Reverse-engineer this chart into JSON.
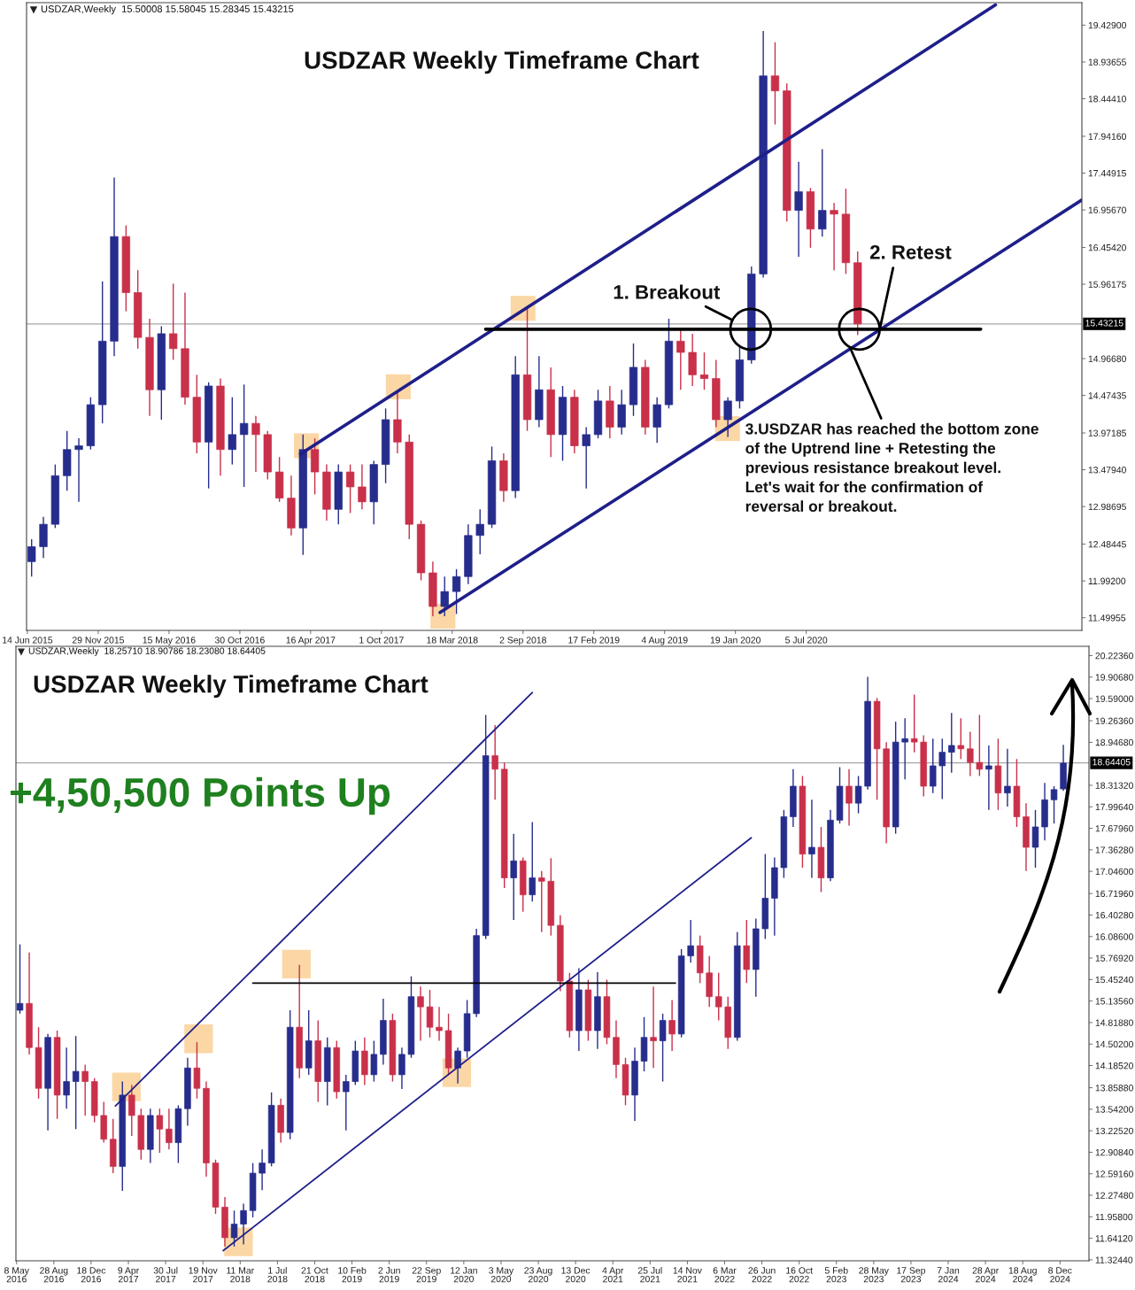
{
  "chart_data": [
    {
      "type": "candlestick",
      "title": "USDZAR Weekly Timeframe Chart",
      "annotations": [
        "USDZAR,Weekly  15.50008 15.58045 15.28345 15.43215",
        {
          "text": "1. Breakout",
          "x": "2020-02-24",
          "y": 15.36
        },
        {
          "text": "2. Retest",
          "x": "2020-12-26",
          "y": 15.35
        },
        {
          "text": "3.USDZAR has reached the bottom zone\nof the Uptrend line + Retesting the\nprevious resistance breakout level.\nLet's wait for the confirmation of\nreversal or breakout.",
          "x": "2020-10-18",
          "y": 15.1
        }
      ],
      "xlim": [
        "2015-06-12",
        "2022-04-20"
      ],
      "xticks": [
        {
          "value": "2015-06-14",
          "label": "14 Jun 2015"
        },
        {
          "value": "2015-11-29",
          "label": "29 Nov 2015"
        },
        {
          "value": "2016-05-15",
          "label": "15 May 2016"
        },
        {
          "value": "2016-10-30",
          "label": "30 Oct 2016"
        },
        {
          "value": "2017-04-16",
          "label": "16 Apr 2017"
        },
        {
          "value": "2017-10-01",
          "label": "1 Oct 2017"
        },
        {
          "value": "2018-03-18",
          "label": "18 Mar 2018"
        },
        {
          "value": "2018-09-02",
          "label": "2 Sep 2018"
        },
        {
          "value": "2019-02-17",
          "label": "17 Feb 2019"
        },
        {
          "value": "2019-08-04",
          "label": "4 Aug 2019"
        },
        {
          "value": "2020-01-19",
          "label": "19 Jan 2020"
        },
        {
          "value": "2020-07-05",
          "label": "5 Jul 2020"
        }
      ],
      "ylim": [
        11.33,
        19.73
      ],
      "yticks": [
        {
          "value": 19.429,
          "label": "19.42900"
        },
        18.93655,
        {
          "value": 18.4441,
          "label": "18.44410"
        },
        {
          "value": 17.9416,
          "label": "17.94160"
        },
        17.44915,
        {
          "value": 16.9567,
          "label": "16.95670"
        },
        {
          "value": 16.4542,
          "label": "16.45420"
        },
        15.96175,
        {
          "value": 14.9668,
          "label": "14.96680"
        },
        14.47435,
        13.97185,
        {
          "value": 13.4794,
          "label": "13.47940"
        },
        12.98695,
        12.48445,
        {
          "value": 11.992,
          "label": "11.99200"
        },
        11.49955
      ],
      "ref_lines": [
        {
          "axis": "y",
          "value": 15.43215,
          "label": "15.43215",
          "color": "#a6a6a6"
        }
      ],
      "series": [
        {
          "color": "#262d8c",
          "x": [
            "2015-06-24",
            "2015-07-22",
            "2015-08-19",
            "2015-09-16",
            "2015-10-14",
            "2015-11-11",
            "2015-12-09",
            "2016-01-06",
            "2016-04-27",
            "2016-08-17",
            "2016-10-12",
            "2016-11-09",
            "2017-03-29",
            "2017-06-21",
            "2017-09-13",
            "2017-10-11",
            "2018-02-28",
            "2018-03-28",
            "2018-04-25",
            "2018-05-23",
            "2018-06-20",
            "2018-08-15",
            "2018-10-10",
            "2018-12-05",
            "2019-01-30",
            "2019-02-27",
            "2019-04-24",
            "2019-05-22",
            "2019-07-17",
            "2019-08-14",
            "2020-01-01",
            "2020-01-29",
            "2020-02-26",
            "2020-03-25",
            "2020-06-17",
            "2020-08-12"
          ],
          "ohlc": [
            [
              12.25,
              12.55,
              12.05,
              12.45
            ],
            [
              12.45,
              12.85,
              12.3,
              12.75
            ],
            [
              12.75,
              13.55,
              12.7,
              13.4
            ],
            [
              13.4,
              14.0,
              13.2,
              13.75
            ],
            [
              13.75,
              13.9,
              13.05,
              13.8
            ],
            [
              13.8,
              14.45,
              13.75,
              14.35
            ],
            [
              14.35,
              16.0,
              14.1,
              15.2
            ],
            [
              15.2,
              17.39,
              15.0,
              16.6
            ],
            [
              14.55,
              15.4,
              14.15,
              15.3
            ],
            [
              13.85,
              14.65,
              13.23,
              14.6
            ],
            [
              13.75,
              14.45,
              13.55,
              13.95
            ],
            [
              13.95,
              14.62,
              13.25,
              14.1
            ],
            [
              12.7,
              13.95,
              12.34,
              13.75
            ],
            [
              12.95,
              13.55,
              12.75,
              13.45
            ],
            [
              13.05,
              13.6,
              12.75,
              13.55
            ],
            [
              13.55,
              14.3,
              13.3,
              14.15
            ],
            [
              11.65,
              12.05,
              11.52,
              11.85
            ],
            [
              11.85,
              12.15,
              11.55,
              12.05
            ],
            [
              12.05,
              12.75,
              11.95,
              12.6
            ],
            [
              12.6,
              12.95,
              12.35,
              12.75
            ],
            [
              12.75,
              13.79,
              12.7,
              13.6
            ],
            [
              13.2,
              15.0,
              13.1,
              14.75
            ],
            [
              14.15,
              15.0,
              14.05,
              14.55
            ],
            [
              13.95,
              14.6,
              13.6,
              14.45
            ],
            [
              13.8,
              14.05,
              13.23,
              13.95
            ],
            [
              13.95,
              14.55,
              13.9,
              14.4
            ],
            [
              14.05,
              14.55,
              13.95,
              14.35
            ],
            [
              14.35,
              15.17,
              14.2,
              14.85
            ],
            [
              14.05,
              14.45,
              13.84,
              14.35
            ],
            [
              14.35,
              15.5,
              14.3,
              15.2
            ],
            [
              14.15,
              14.45,
              13.92,
              14.4
            ],
            [
              14.4,
              15.15,
              14.3,
              14.95
            ],
            [
              14.95,
              16.2,
              14.9,
              16.1
            ],
            [
              16.1,
              19.35,
              16.05,
              18.75
            ],
            [
              16.95,
              17.6,
              16.33,
              17.2
            ],
            [
              16.7,
              17.77,
              16.6,
              16.95
            ]
          ]
        },
        {
          "color": "#c9304a",
          "x": [
            "2016-02-03",
            "2016-03-02",
            "2016-03-30",
            "2016-05-25",
            "2016-06-22",
            "2016-07-20",
            "2016-09-14",
            "2016-12-07",
            "2017-01-04",
            "2017-02-01",
            "2017-03-01",
            "2017-04-26",
            "2017-05-24",
            "2017-07-19",
            "2017-08-16",
            "2017-11-08",
            "2017-12-06",
            "2018-01-03",
            "2018-01-31",
            "2018-07-18",
            "2018-09-12",
            "2018-11-07",
            "2019-01-02",
            "2019-03-27",
            "2019-06-19",
            "2019-09-11",
            "2019-10-09",
            "2019-11-06",
            "2019-12-04",
            "2020-04-22",
            "2020-05-20",
            "2020-07-15",
            "2020-09-09",
            "2020-10-07",
            "2020-11-04"
          ],
          "ohlc": [
            [
              16.6,
              16.75,
              15.6,
              15.85
            ],
            [
              15.85,
              16.15,
              15.1,
              15.25
            ],
            [
              15.25,
              15.5,
              14.2,
              14.55
            ],
            [
              15.3,
              15.97,
              14.95,
              15.1
            ],
            [
              15.1,
              15.85,
              14.35,
              14.45
            ],
            [
              14.45,
              14.75,
              13.7,
              13.85
            ],
            [
              14.6,
              14.7,
              13.4,
              13.75
            ],
            [
              14.1,
              14.2,
              13.45,
              13.95
            ],
            [
              13.95,
              14.0,
              13.35,
              13.45
            ],
            [
              13.45,
              13.65,
              13.05,
              13.1
            ],
            [
              13.1,
              13.4,
              12.6,
              12.7
            ],
            [
              13.75,
              13.9,
              13.15,
              13.45
            ],
            [
              13.45,
              13.55,
              12.8,
              12.95
            ],
            [
              13.45,
              13.55,
              12.9,
              13.25
            ],
            [
              13.25,
              13.55,
              12.95,
              13.05
            ],
            [
              14.15,
              14.53,
              13.7,
              13.85
            ],
            [
              13.85,
              13.95,
              12.55,
              12.75
            ],
            [
              12.75,
              12.8,
              12.0,
              12.1
            ],
            [
              12.1,
              12.25,
              11.52,
              11.65
            ],
            [
              13.6,
              13.7,
              13.05,
              13.2
            ],
            [
              14.75,
              15.67,
              14.0,
              14.15
            ],
            [
              14.55,
              14.85,
              13.65,
              13.95
            ],
            [
              14.45,
              14.55,
              13.7,
              13.8
            ],
            [
              14.4,
              14.6,
              13.9,
              14.05
            ],
            [
              14.85,
              14.95,
              13.95,
              14.05
            ],
            [
              15.2,
              15.35,
              14.55,
              15.05
            ],
            [
              15.05,
              15.3,
              14.6,
              14.75
            ],
            [
              14.75,
              15.05,
              14.55,
              14.7
            ],
            [
              14.7,
              14.95,
              14.05,
              14.15
            ],
            [
              18.75,
              19.2,
              18.1,
              18.55
            ],
            [
              18.55,
              18.65,
              16.8,
              16.95
            ],
            [
              17.2,
              17.25,
              16.45,
              16.7
            ],
            [
              16.95,
              17.05,
              16.15,
              16.9
            ],
            [
              16.9,
              17.24,
              16.1,
              16.25
            ],
            [
              16.25,
              16.4,
              15.28,
              15.43
            ]
          ]
        },
        {
          "type": "line",
          "color": "#1f1f8a",
          "x": [
            "2017-03-23",
            "2021-09-27"
          ],
          "values": [
            13.69,
            19.7
          ]
        },
        {
          "type": "line",
          "color": "#1f1f8a",
          "x": [
            "2018-02-17",
            "2022-04-20"
          ],
          "values": [
            11.57,
            17.09
          ]
        },
        {
          "type": "line",
          "color": "#000000",
          "x": [
            "2018-06-05",
            "2021-08-23"
          ],
          "values": [
            15.36,
            15.36
          ]
        },
        {
          "type": "scatter",
          "marker": "square",
          "color": "#fbd7a5",
          "x": [
            "2017-04-06",
            "2017-11-10",
            "2018-02-24",
            "2018-09-02",
            "2019-12-31"
          ],
          "values": [
            13.8,
            14.59,
            11.52,
            15.64,
            14.03
          ]
        },
        {
          "type": "scatter",
          "marker": "circle",
          "color": "#000000",
          "x": [
            "2020-02-24",
            "2020-11-08"
          ],
          "values": [
            15.36,
            15.36
          ]
        }
      ]
    },
    {
      "type": "candlestick",
      "title": "USDZAR Weekly Timeframe Chart",
      "annotations": [
        "USDZAR,Weekly  18.25710 18.90786 18.23080 18.64405",
        "+4,50,500 Points Up"
      ],
      "xlim": [
        "2016-05-06",
        "2025-03-05"
      ],
      "xticks": [
        {
          "value": "2016-05-08",
          "label": "8 May 2016"
        },
        {
          "value": "2016-08-28",
          "label": "28 Aug 2016"
        },
        {
          "value": "2016-12-18",
          "label": "18 Dec 2016"
        },
        {
          "value": "2017-04-09",
          "label": "9 Apr 2017"
        },
        {
          "value": "2017-07-30",
          "label": "30 Jul 2017"
        },
        {
          "value": "2017-11-19",
          "label": "19 Nov 2017"
        },
        {
          "value": "2018-03-11",
          "label": "11 Mar 2018"
        },
        {
          "value": "2018-07-01",
          "label": "1 Jul 2018"
        },
        {
          "value": "2018-10-21",
          "label": "21 Oct 2018"
        },
        {
          "value": "2019-02-10",
          "label": "10 Feb 2019"
        },
        {
          "value": "2019-06-02",
          "label": "2 Jun 2019"
        },
        {
          "value": "2019-09-22",
          "label": "22 Sep 2019"
        },
        {
          "value": "2020-01-12",
          "label": "12 Jan 2020"
        },
        {
          "value": "2020-05-03",
          "label": "3 May 2020"
        },
        {
          "value": "2020-08-23",
          "label": "23 Aug 2020"
        },
        {
          "value": "2020-12-13",
          "label": "13 Dec 2020"
        },
        {
          "value": "2021-04-04",
          "label": "4 Apr 2021"
        },
        {
          "value": "2021-07-25",
          "label": "25 Jul 2021"
        },
        {
          "value": "2021-11-14",
          "label": "14 Nov 2021"
        },
        {
          "value": "2022-03-06",
          "label": "6 Mar 2022"
        },
        {
          "value": "2022-06-26",
          "label": "26 Jun 2022"
        },
        {
          "value": "2022-10-16",
          "label": "16 Oct 2022"
        },
        {
          "value": "2023-02-05",
          "label": "5 Feb 2023"
        },
        {
          "value": "2023-05-28",
          "label": "28 May 2023"
        },
        {
          "value": "2023-09-17",
          "label": "17 Sep 2023"
        },
        {
          "value": "2024-01-07",
          "label": "7 Jan 2024"
        },
        {
          "value": "2024-04-28",
          "label": "28 Apr 2024"
        },
        {
          "value": "2024-08-18",
          "label": "18 Aug 2024"
        },
        {
          "value": "2024-12-08",
          "label": "8 Dec 2024"
        }
      ],
      "ylim": [
        11.31,
        20.36
      ],
      "yticks": [
        {
          "value": 20.2236,
          "label": "20.22360"
        },
        {
          "value": 19.9068,
          "label": "19.90680"
        },
        {
          "value": 19.59,
          "label": "19.59000"
        },
        {
          "value": 19.2636,
          "label": "19.26360"
        },
        {
          "value": 18.9468,
          "label": "18.94680"
        },
        {
          "value": 18.3132,
          "label": "18.31320"
        },
        {
          "value": 17.9964,
          "label": "17.99640"
        },
        {
          "value": 17.6796,
          "label": "17.67960"
        },
        {
          "value": 17.3628,
          "label": "17.36280"
        },
        {
          "value": 17.046,
          "label": "17.04600"
        },
        {
          "value": 16.7196,
          "label": "16.71960"
        },
        {
          "value": 16.4028,
          "label": "16.40280"
        },
        {
          "value": 16.086,
          "label": "16.08600"
        },
        {
          "value": 15.7692,
          "label": "15.76920"
        },
        {
          "value": 15.4524,
          "label": "15.45240"
        },
        {
          "value": 15.1356,
          "label": "15.13560"
        },
        {
          "value": 14.8188,
          "label": "14.81880"
        },
        {
          "value": 14.502,
          "label": "14.50200"
        },
        {
          "value": 14.1852,
          "label": "14.18520"
        },
        {
          "value": 13.8588,
          "label": "13.85880"
        },
        {
          "value": 13.542,
          "label": "13.54200"
        },
        {
          "value": 13.2252,
          "label": "13.22520"
        },
        {
          "value": 12.9084,
          "label": "12.90840"
        },
        {
          "value": 12.5916,
          "label": "12.59160"
        },
        {
          "value": 12.2748,
          "label": "12.27480"
        },
        {
          "value": 11.958,
          "label": "11.95800"
        },
        {
          "value": 11.6412,
          "label": "11.64120"
        },
        {
          "value": 11.3244,
          "label": "11.32440"
        }
      ],
      "ref_lines": [
        {
          "axis": "y",
          "value": 18.64405,
          "label": "18.64405",
          "color": "#a6a6a6"
        }
      ],
      "series": [
        {
          "color": "#262d8c",
          "x": [
            "2016-05-18",
            "2016-08-10",
            "2016-10-05",
            "2016-11-02",
            "2017-03-22",
            "2017-06-14",
            "2017-09-06",
            "2017-10-04",
            "2018-02-21",
            "2018-03-21",
            "2018-04-18",
            "2018-05-16",
            "2018-06-13",
            "2018-08-08",
            "2018-10-03",
            "2018-11-28",
            "2019-01-23",
            "2019-02-20",
            "2019-04-17",
            "2019-05-15",
            "2019-07-10",
            "2019-08-07",
            "2019-12-25",
            "2020-01-22",
            "2020-02-19",
            "2020-03-18",
            "2020-06-10",
            "2020-08-05",
            "2020-12-23",
            "2021-02-17",
            "2021-06-09",
            "2021-07-07",
            "2021-09-01",
            "2021-10-27",
            "2021-11-24",
            "2022-04-13",
            "2022-06-08",
            "2022-07-06",
            "2022-08-03",
            "2022-08-31",
            "2022-09-28",
            "2022-11-23",
            "2023-01-18",
            "2023-02-15",
            "2023-04-12",
            "2023-05-10",
            "2023-08-02",
            "2023-08-30",
            "2023-11-22",
            "2023-12-20",
            "2024-01-17",
            "2024-05-08",
            "2024-07-03",
            "2024-09-25",
            "2024-10-23",
            "2024-11-20",
            "2024-12-18"
          ],
          "ohlc": [
            [
              15.0,
              15.97,
              14.95,
              15.1
            ],
            [
              13.85,
              14.65,
              13.23,
              14.6
            ],
            [
              13.75,
              14.45,
              13.55,
              13.95
            ],
            [
              13.95,
              14.62,
              13.25,
              14.1
            ],
            [
              12.7,
              13.95,
              12.34,
              13.75
            ],
            [
              12.95,
              13.55,
              12.75,
              13.45
            ],
            [
              13.05,
              13.6,
              12.75,
              13.55
            ],
            [
              13.55,
              14.3,
              13.3,
              14.15
            ],
            [
              11.65,
              12.05,
              11.52,
              11.85
            ],
            [
              11.85,
              12.15,
              11.55,
              12.05
            ],
            [
              12.05,
              12.75,
              11.95,
              12.6
            ],
            [
              12.6,
              12.95,
              12.35,
              12.75
            ],
            [
              12.75,
              13.79,
              12.7,
              13.6
            ],
            [
              13.2,
              15.0,
              13.1,
              14.75
            ],
            [
              14.15,
              15.0,
              14.05,
              14.55
            ],
            [
              13.95,
              14.6,
              13.6,
              14.45
            ],
            [
              13.8,
              14.05,
              13.23,
              13.95
            ],
            [
              13.95,
              14.55,
              13.9,
              14.4
            ],
            [
              14.05,
              14.55,
              13.95,
              14.35
            ],
            [
              14.35,
              15.17,
              14.2,
              14.85
            ],
            [
              14.05,
              14.45,
              13.84,
              14.35
            ],
            [
              14.35,
              15.5,
              14.3,
              15.2
            ],
            [
              14.15,
              14.45,
              13.92,
              14.4
            ],
            [
              14.4,
              15.15,
              14.3,
              14.95
            ],
            [
              14.95,
              16.2,
              14.9,
              16.1
            ],
            [
              16.1,
              19.35,
              16.05,
              18.75
            ],
            [
              16.95,
              17.6,
              16.33,
              17.2
            ],
            [
              16.7,
              17.77,
              16.6,
              16.95
            ],
            [
              14.7,
              15.62,
              14.4,
              15.3
            ],
            [
              14.7,
              15.56,
              14.43,
              15.2
            ],
            [
              13.75,
              14.45,
              13.37,
              14.25
            ],
            [
              14.25,
              14.9,
              14.1,
              14.6
            ],
            [
              14.55,
              14.95,
              13.95,
              14.85
            ],
            [
              14.65,
              15.9,
              14.6,
              15.8
            ],
            [
              15.8,
              16.33,
              15.7,
              15.95
            ],
            [
              14.6,
              16.15,
              14.55,
              15.95
            ],
            [
              15.6,
              16.35,
              15.2,
              16.2
            ],
            [
              16.2,
              17.3,
              16.05,
              16.65
            ],
            [
              16.65,
              17.25,
              16.1,
              17.1
            ],
            [
              17.1,
              17.95,
              16.95,
              17.85
            ],
            [
              17.85,
              18.55,
              17.7,
              18.3
            ],
            [
              17.3,
              18.1,
              16.95,
              17.4
            ],
            [
              16.95,
              17.95,
              16.9,
              17.8
            ],
            [
              17.8,
              18.58,
              17.75,
              18.3
            ],
            [
              18.05,
              18.45,
              17.9,
              18.3
            ],
            [
              18.3,
              19.91,
              18.25,
              19.55
            ],
            [
              17.7,
              19.25,
              17.6,
              18.95
            ],
            [
              18.95,
              19.3,
              18.4,
              19.0
            ],
            [
              18.3,
              19.0,
              18.2,
              18.6
            ],
            [
              18.6,
              19.0,
              18.11,
              18.8
            ],
            [
              18.8,
              19.38,
              18.5,
              18.9
            ],
            [
              18.55,
              18.9,
              17.95,
              18.6
            ],
            [
              18.2,
              18.85,
              18.0,
              18.3
            ],
            [
              17.4,
              17.95,
              17.1,
              17.7
            ],
            [
              17.7,
              18.35,
              17.5,
              18.1
            ],
            [
              18.1,
              18.3,
              17.75,
              18.25
            ],
            [
              18.26,
              18.91,
              18.23,
              18.64
            ]
          ]
        },
        {
          "color": "#c9304a",
          "x": [
            "2016-06-15",
            "2016-07-13",
            "2016-09-07",
            "2016-11-30",
            "2016-12-28",
            "2017-01-25",
            "2017-02-22",
            "2017-04-19",
            "2017-05-17",
            "2017-07-12",
            "2017-08-09",
            "2017-11-01",
            "2017-11-29",
            "2017-12-27",
            "2018-01-24",
            "2018-07-11",
            "2018-09-05",
            "2018-10-31",
            "2018-12-26",
            "2019-03-20",
            "2019-06-12",
            "2019-09-04",
            "2019-10-02",
            "2019-10-30",
            "2019-11-27",
            "2020-04-15",
            "2020-05-13",
            "2020-07-08",
            "2020-09-02",
            "2020-09-30",
            "2020-10-28",
            "2020-11-25",
            "2021-01-20",
            "2021-03-17",
            "2021-04-14",
            "2021-05-12",
            "2021-08-04",
            "2021-09-29",
            "2021-12-22",
            "2022-01-19",
            "2022-02-16",
            "2022-03-16",
            "2022-05-11",
            "2022-10-26",
            "2022-12-21",
            "2023-03-15",
            "2023-06-07",
            "2023-07-05",
            "2023-09-27",
            "2023-10-25",
            "2024-02-14",
            "2024-03-13",
            "2024-04-10",
            "2024-06-05",
            "2024-07-31",
            "2024-08-28"
          ],
          "ohlc": [
            [
              15.1,
              15.85,
              14.35,
              14.45
            ],
            [
              14.45,
              14.75,
              13.7,
              13.85
            ],
            [
              14.6,
              14.7,
              13.4,
              13.75
            ],
            [
              14.1,
              14.2,
              13.45,
              13.95
            ],
            [
              13.95,
              14.0,
              13.35,
              13.45
            ],
            [
              13.45,
              13.65,
              13.05,
              13.1
            ],
            [
              13.1,
              13.4,
              12.6,
              12.7
            ],
            [
              13.75,
              13.9,
              13.15,
              13.45
            ],
            [
              13.45,
              13.55,
              12.8,
              12.95
            ],
            [
              13.45,
              13.55,
              12.9,
              13.25
            ],
            [
              13.25,
              13.55,
              12.95,
              13.05
            ],
            [
              14.15,
              14.53,
              13.7,
              13.85
            ],
            [
              13.85,
              13.95,
              12.55,
              12.75
            ],
            [
              12.75,
              12.8,
              12.0,
              12.1
            ],
            [
              12.1,
              12.25,
              11.52,
              11.65
            ],
            [
              13.6,
              13.7,
              13.05,
              13.2
            ],
            [
              14.75,
              15.67,
              14.0,
              14.15
            ],
            [
              14.55,
              14.85,
              13.65,
              13.95
            ],
            [
              14.45,
              14.55,
              13.7,
              13.8
            ],
            [
              14.4,
              14.6,
              13.9,
              14.05
            ],
            [
              14.85,
              14.95,
              13.95,
              14.05
            ],
            [
              15.2,
              15.35,
              14.55,
              15.05
            ],
            [
              15.05,
              15.3,
              14.6,
              14.75
            ],
            [
              14.75,
              15.05,
              14.55,
              14.7
            ],
            [
              14.7,
              14.95,
              14.05,
              14.15
            ],
            [
              18.75,
              19.2,
              18.1,
              18.55
            ],
            [
              18.55,
              18.65,
              16.8,
              16.95
            ],
            [
              17.2,
              17.25,
              16.45,
              16.7
            ],
            [
              16.95,
              17.05,
              16.15,
              16.9
            ],
            [
              16.9,
              17.24,
              16.1,
              16.25
            ],
            [
              16.25,
              16.4,
              15.28,
              15.43
            ],
            [
              15.43,
              15.55,
              14.6,
              14.7
            ],
            [
              15.3,
              15.45,
              14.55,
              14.7
            ],
            [
              15.2,
              15.45,
              14.5,
              14.6
            ],
            [
              14.6,
              14.85,
              14.0,
              14.2
            ],
            [
              14.2,
              14.3,
              13.6,
              13.75
            ],
            [
              14.6,
              15.35,
              14.15,
              14.55
            ],
            [
              14.85,
              15.15,
              14.4,
              14.65
            ],
            [
              15.95,
              16.1,
              15.4,
              15.55
            ],
            [
              15.55,
              15.8,
              15.05,
              15.2
            ],
            [
              15.2,
              15.55,
              14.85,
              15.05
            ],
            [
              15.05,
              15.2,
              14.43,
              14.6
            ],
            [
              15.95,
              16.33,
              15.4,
              15.6
            ],
            [
              18.3,
              18.45,
              17.1,
              17.3
            ],
            [
              17.4,
              17.7,
              16.74,
              16.95
            ],
            [
              18.3,
              18.55,
              17.72,
              18.05
            ],
            [
              19.55,
              19.6,
              18.1,
              18.85
            ],
            [
              18.85,
              18.95,
              17.46,
              17.7
            ],
            [
              19.0,
              19.65,
              18.8,
              18.95
            ],
            [
              18.95,
              19.05,
              18.15,
              18.3
            ],
            [
              18.9,
              19.3,
              18.7,
              18.85
            ],
            [
              18.85,
              19.1,
              18.45,
              18.65
            ],
            [
              18.65,
              19.35,
              18.45,
              18.55
            ],
            [
              18.6,
              19.0,
              17.95,
              18.2
            ],
            [
              18.3,
              18.7,
              17.7,
              17.85
            ],
            [
              17.85,
              18.05,
              17.05,
              17.4
            ]
          ]
        },
        {
          "type": "line",
          "color": "#1f1f8a",
          "x": [
            "2017-03-01",
            "2020-08-05"
          ],
          "values": [
            13.59,
            19.68
          ]
        },
        {
          "type": "line",
          "color": "#1f1f8a",
          "x": [
            "2018-01-19",
            "2022-05-25"
          ],
          "values": [
            11.46,
            17.54
          ]
        },
        {
          "type": "line",
          "color": "#000000",
          "x": [
            "2018-04-18",
            "2021-10-09"
          ],
          "values": [
            15.4,
            15.4
          ]
        },
        {
          "type": "scatter",
          "marker": "square",
          "color": "#fbd7a5",
          "x": [
            "2017-04-03",
            "2017-11-06",
            "2018-03-06",
            "2018-08-27",
            "2019-12-22"
          ],
          "values": [
            13.87,
            14.58,
            11.59,
            15.68,
            14.08
          ]
        }
      ]
    }
  ]
}
